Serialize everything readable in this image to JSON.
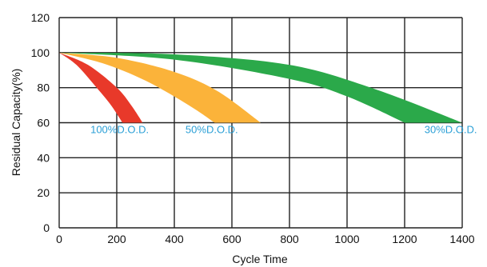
{
  "chart_data": {
    "type": "area",
    "title": "",
    "xlabel": "Cycle Time",
    "ylabel": "Residual Capacity(%)",
    "xlim": [
      0,
      1400
    ],
    "ylim": [
      0,
      120
    ],
    "xticks": [
      "0",
      "200",
      "400",
      "600",
      "800",
      "1000",
      "1200",
      "1400"
    ],
    "yticks": [
      "0",
      "20",
      "40",
      "60",
      "80",
      "100",
      "120"
    ],
    "grid": true,
    "label_color": "#2a9fd6",
    "series": [
      {
        "name": "100%D.O.D.",
        "color": "#e8392a",
        "upper": [
          [
            0,
            100
          ],
          [
            100,
            93
          ],
          [
            200,
            80
          ],
          [
            250,
            70
          ],
          [
            290,
            60
          ]
        ],
        "lower": [
          [
            0,
            100
          ],
          [
            60,
            93
          ],
          [
            130,
            80
          ],
          [
            180,
            70
          ],
          [
            220,
            60
          ]
        ]
      },
      {
        "name": "50%D.O.D.",
        "color": "#fbb33a",
        "upper": [
          [
            0,
            100
          ],
          [
            200,
            97
          ],
          [
            400,
            89
          ],
          [
            550,
            78
          ],
          [
            700,
            60
          ]
        ],
        "lower": [
          [
            0,
            100
          ],
          [
            150,
            94
          ],
          [
            300,
            84
          ],
          [
            450,
            70
          ],
          [
            540,
            60
          ]
        ]
      },
      {
        "name": "30%D.O.D.",
        "color": "#2ba94a",
        "upper": [
          [
            0,
            100
          ],
          [
            400,
            99
          ],
          [
            800,
            93
          ],
          [
            1100,
            79
          ],
          [
            1400,
            60
          ]
        ],
        "lower": [
          [
            0,
            100
          ],
          [
            400,
            96
          ],
          [
            800,
            85
          ],
          [
            1000,
            75
          ],
          [
            1200,
            60
          ]
        ]
      }
    ]
  }
}
